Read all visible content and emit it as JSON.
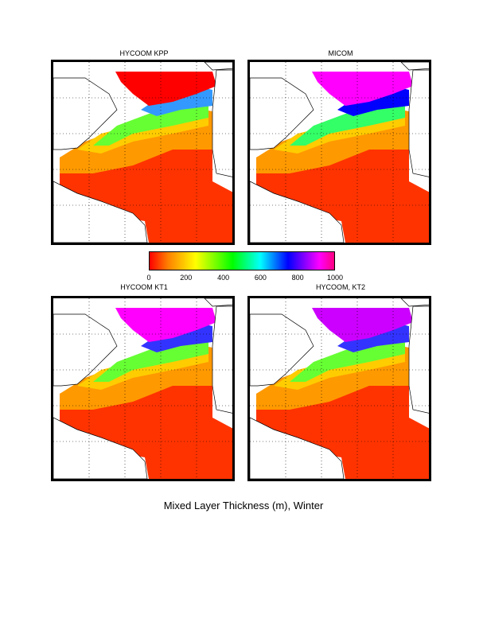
{
  "panels": [
    {
      "title": "HYCOOM KPP"
    },
    {
      "title": "MICOM"
    },
    {
      "title": "HYCOOM KT1"
    },
    {
      "title": "HYCOOM, KT2"
    }
  ],
  "colorbar": {
    "ticks": [
      "0",
      "200",
      "400",
      "600",
      "800",
      "1000"
    ],
    "min": 0,
    "max": 1000
  },
  "caption": "Mixed Layer Thickness (m), Winter",
  "colors": {
    "low": "#ff0000",
    "mid_low": "#ffff00",
    "mid": "#00ff00",
    "mid_high": "#0000ff",
    "high": "#ff00ff"
  }
}
